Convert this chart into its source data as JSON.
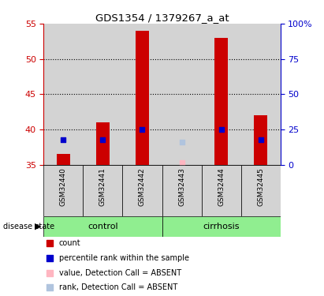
{
  "title": "GDS1354 / 1379267_a_at",
  "samples": [
    "GSM32440",
    "GSM32441",
    "GSM32442",
    "GSM32443",
    "GSM32444",
    "GSM32445"
  ],
  "groups": [
    "control",
    "control",
    "control",
    "cirrhosis",
    "cirrhosis",
    "cirrhosis"
  ],
  "group_labels": [
    "control",
    "cirrhosis"
  ],
  "ylim_left": [
    35,
    55
  ],
  "ylim_right": [
    0,
    100
  ],
  "yticks_left": [
    35,
    40,
    45,
    50,
    55
  ],
  "yticks_right": [
    0,
    25,
    50,
    75,
    100
  ],
  "ytick_labels_right": [
    "0",
    "25",
    "50",
    "75",
    "100%"
  ],
  "red_bar_values": [
    36.5,
    41.0,
    54.0,
    null,
    53.0,
    42.0
  ],
  "blue_sq_values": [
    38.5,
    38.5,
    40.0,
    null,
    40.0,
    38.5
  ],
  "absent_value": [
    null,
    null,
    null,
    35.3,
    null,
    null
  ],
  "absent_rank": [
    null,
    null,
    null,
    38.2,
    null,
    null
  ],
  "bar_color": "#CC0000",
  "blue_color": "#0000CC",
  "absent_val_color": "#FFB6C1",
  "absent_rank_color": "#B0C4DE",
  "bg_plot": "#D3D3D3",
  "bg_group_green": "#90EE90",
  "bar_width": 0.35,
  "blue_sq_size": 25,
  "absent_sq_size": 20,
  "legend_items": [
    {
      "label": "count",
      "color": "#CC0000"
    },
    {
      "label": "percentile rank within the sample",
      "color": "#0000CC"
    },
    {
      "label": "value, Detection Call = ABSENT",
      "color": "#FFB6C1"
    },
    {
      "label": "rank, Detection Call = ABSENT",
      "color": "#B0C4DE"
    }
  ]
}
